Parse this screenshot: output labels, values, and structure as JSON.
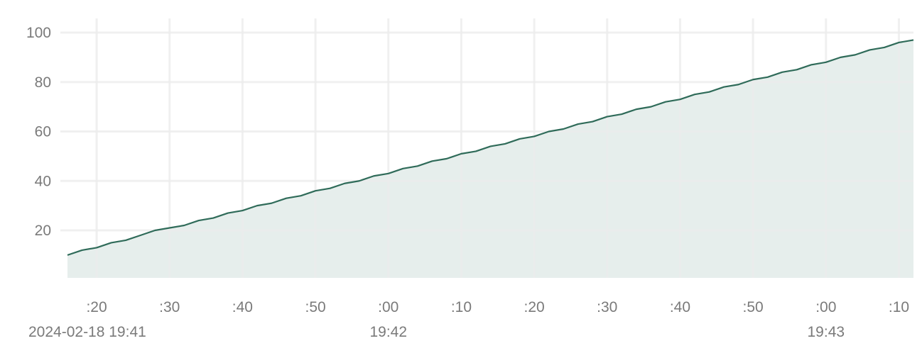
{
  "colors": {
    "line": "#2f6b59",
    "area": "#e6eeec",
    "grid": "#ececec",
    "text": "#7a7a7a",
    "background": "#ffffff"
  },
  "chart_data": {
    "type": "area",
    "title": "",
    "xlabel": "",
    "ylabel": "",
    "grid": true,
    "ylim": [
      0,
      100
    ],
    "xlim": [
      "2024-02-18 19:41:16",
      "2024-02-18 19:43:12"
    ],
    "y_ticks": [
      20,
      40,
      60,
      80,
      100
    ],
    "x_ticks": [
      {
        "time": "2024-02-18 19:41:20",
        "label": ":20"
      },
      {
        "time": "2024-02-18 19:41:30",
        "label": ":30"
      },
      {
        "time": "2024-02-18 19:41:40",
        "label": ":40"
      },
      {
        "time": "2024-02-18 19:41:50",
        "label": ":50"
      },
      {
        "time": "2024-02-18 19:42:00",
        "label": ":00"
      },
      {
        "time": "2024-02-18 19:42:10",
        "label": ":10"
      },
      {
        "time": "2024-02-18 19:42:20",
        "label": ":20"
      },
      {
        "time": "2024-02-18 19:42:30",
        "label": ":30"
      },
      {
        "time": "2024-02-18 19:42:40",
        "label": ":40"
      },
      {
        "time": "2024-02-18 19:42:50",
        "label": ":50"
      },
      {
        "time": "2024-02-18 19:43:00",
        "label": ":00"
      },
      {
        "time": "2024-02-18 19:43:10",
        "label": ":10"
      }
    ],
    "date_labels": [
      {
        "time": "2024-02-18 19:41:20",
        "label": "2024-02-18 19:41"
      },
      {
        "time": "2024-02-18 19:42:00",
        "label": "19:42"
      },
      {
        "time": "2024-02-18 19:43:00",
        "label": "19:43"
      }
    ],
    "series": [
      {
        "x": [
          "2024-02-18 19:41:16",
          "2024-02-18 19:41:18",
          "2024-02-18 19:41:20",
          "2024-02-18 19:41:22",
          "2024-02-18 19:41:24",
          "2024-02-18 19:41:26",
          "2024-02-18 19:41:28",
          "2024-02-18 19:41:30",
          "2024-02-18 19:41:32",
          "2024-02-18 19:41:34",
          "2024-02-18 19:41:36",
          "2024-02-18 19:41:38",
          "2024-02-18 19:41:40",
          "2024-02-18 19:41:42",
          "2024-02-18 19:41:44",
          "2024-02-18 19:41:46",
          "2024-02-18 19:41:48",
          "2024-02-18 19:41:50",
          "2024-02-18 19:41:52",
          "2024-02-18 19:41:54",
          "2024-02-18 19:41:56",
          "2024-02-18 19:41:58",
          "2024-02-18 19:42:00",
          "2024-02-18 19:42:02",
          "2024-02-18 19:42:04",
          "2024-02-18 19:42:06",
          "2024-02-18 19:42:08",
          "2024-02-18 19:42:10",
          "2024-02-18 19:42:12",
          "2024-02-18 19:42:14",
          "2024-02-18 19:42:16",
          "2024-02-18 19:42:18",
          "2024-02-18 19:42:20",
          "2024-02-18 19:42:22",
          "2024-02-18 19:42:24",
          "2024-02-18 19:42:26",
          "2024-02-18 19:42:28",
          "2024-02-18 19:42:30",
          "2024-02-18 19:42:32",
          "2024-02-18 19:42:34",
          "2024-02-18 19:42:36",
          "2024-02-18 19:42:38",
          "2024-02-18 19:42:40",
          "2024-02-18 19:42:42",
          "2024-02-18 19:42:44",
          "2024-02-18 19:42:46",
          "2024-02-18 19:42:48",
          "2024-02-18 19:42:50",
          "2024-02-18 19:42:52",
          "2024-02-18 19:42:54",
          "2024-02-18 19:42:56",
          "2024-02-18 19:42:58",
          "2024-02-18 19:43:00",
          "2024-02-18 19:43:02",
          "2024-02-18 19:43:04",
          "2024-02-18 19:43:06",
          "2024-02-18 19:43:08",
          "2024-02-18 19:43:10",
          "2024-02-18 19:43:12"
        ],
        "values": [
          10,
          12,
          13,
          15,
          16,
          18,
          20,
          21,
          22,
          24,
          25,
          27,
          28,
          30,
          31,
          33,
          34,
          36,
          37,
          39,
          40,
          42,
          43,
          45,
          46,
          48,
          49,
          51,
          52,
          54,
          55,
          57,
          58,
          60,
          61,
          63,
          64,
          66,
          67,
          69,
          70,
          72,
          73,
          75,
          76,
          78,
          79,
          81,
          82,
          84,
          85,
          87,
          88,
          90,
          91,
          93,
          94,
          96,
          97
        ]
      }
    ]
  }
}
